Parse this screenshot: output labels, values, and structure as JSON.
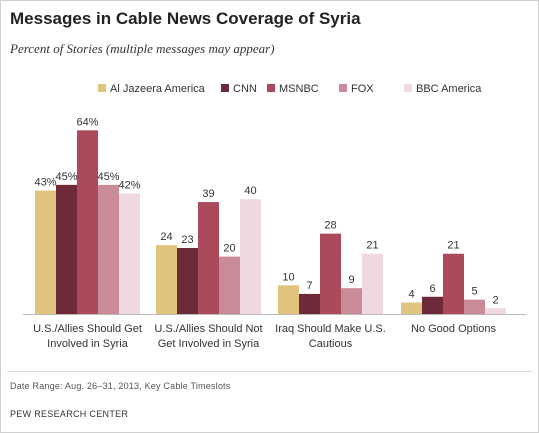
{
  "header": {
    "title": "Messages in Cable News Coverage of Syria",
    "subtitle": "Percent of Stories (multiple messages may appear)"
  },
  "footer": {
    "note": "Date Range: Aug. 26–31, 2013, Key Cable Timeslots",
    "source": "PEW RESEARCH CENTER"
  },
  "chart_data": {
    "type": "bar",
    "title": "Messages in Cable News Coverage of Syria",
    "subtitle": "Percent of Stories (multiple messages may appear)",
    "categories": [
      [
        "U.S./Allies Should Get",
        "Involved in Syria"
      ],
      [
        "U.S./Allies Should Not",
        "Get Involved in Syria"
      ],
      [
        "Iraq Should Make U.S.",
        "Cautious"
      ],
      [
        "No Good Options"
      ]
    ],
    "series": [
      {
        "name": "Al Jazeera America",
        "color": "#e0c47d",
        "values": [
          43,
          24,
          10,
          4
        ],
        "labels": [
          "43%",
          "24",
          "10",
          "4"
        ]
      },
      {
        "name": "CNN",
        "color": "#6d2b3a",
        "values": [
          45,
          23,
          7,
          6
        ],
        "labels": [
          "45%",
          "23",
          "7",
          "6"
        ]
      },
      {
        "name": "MSNBC",
        "color": "#aa4a5a",
        "values": [
          64,
          39,
          28,
          21
        ],
        "labels": [
          "64%",
          "39",
          "28",
          "21"
        ]
      },
      {
        "name": "FOX",
        "color": "#c98b97",
        "values": [
          45,
          20,
          9,
          5
        ],
        "labels": [
          "45%",
          "20",
          "9",
          "5"
        ]
      },
      {
        "name": "BBC America",
        "color": "#efd9de",
        "values": [
          42,
          40,
          21,
          2
        ],
        "labels": [
          "42%",
          "40",
          "21",
          "2"
        ]
      }
    ],
    "ylim": [
      0,
      100
    ],
    "grid": false,
    "legend_position": "top",
    "xlabel": "",
    "ylabel": ""
  }
}
